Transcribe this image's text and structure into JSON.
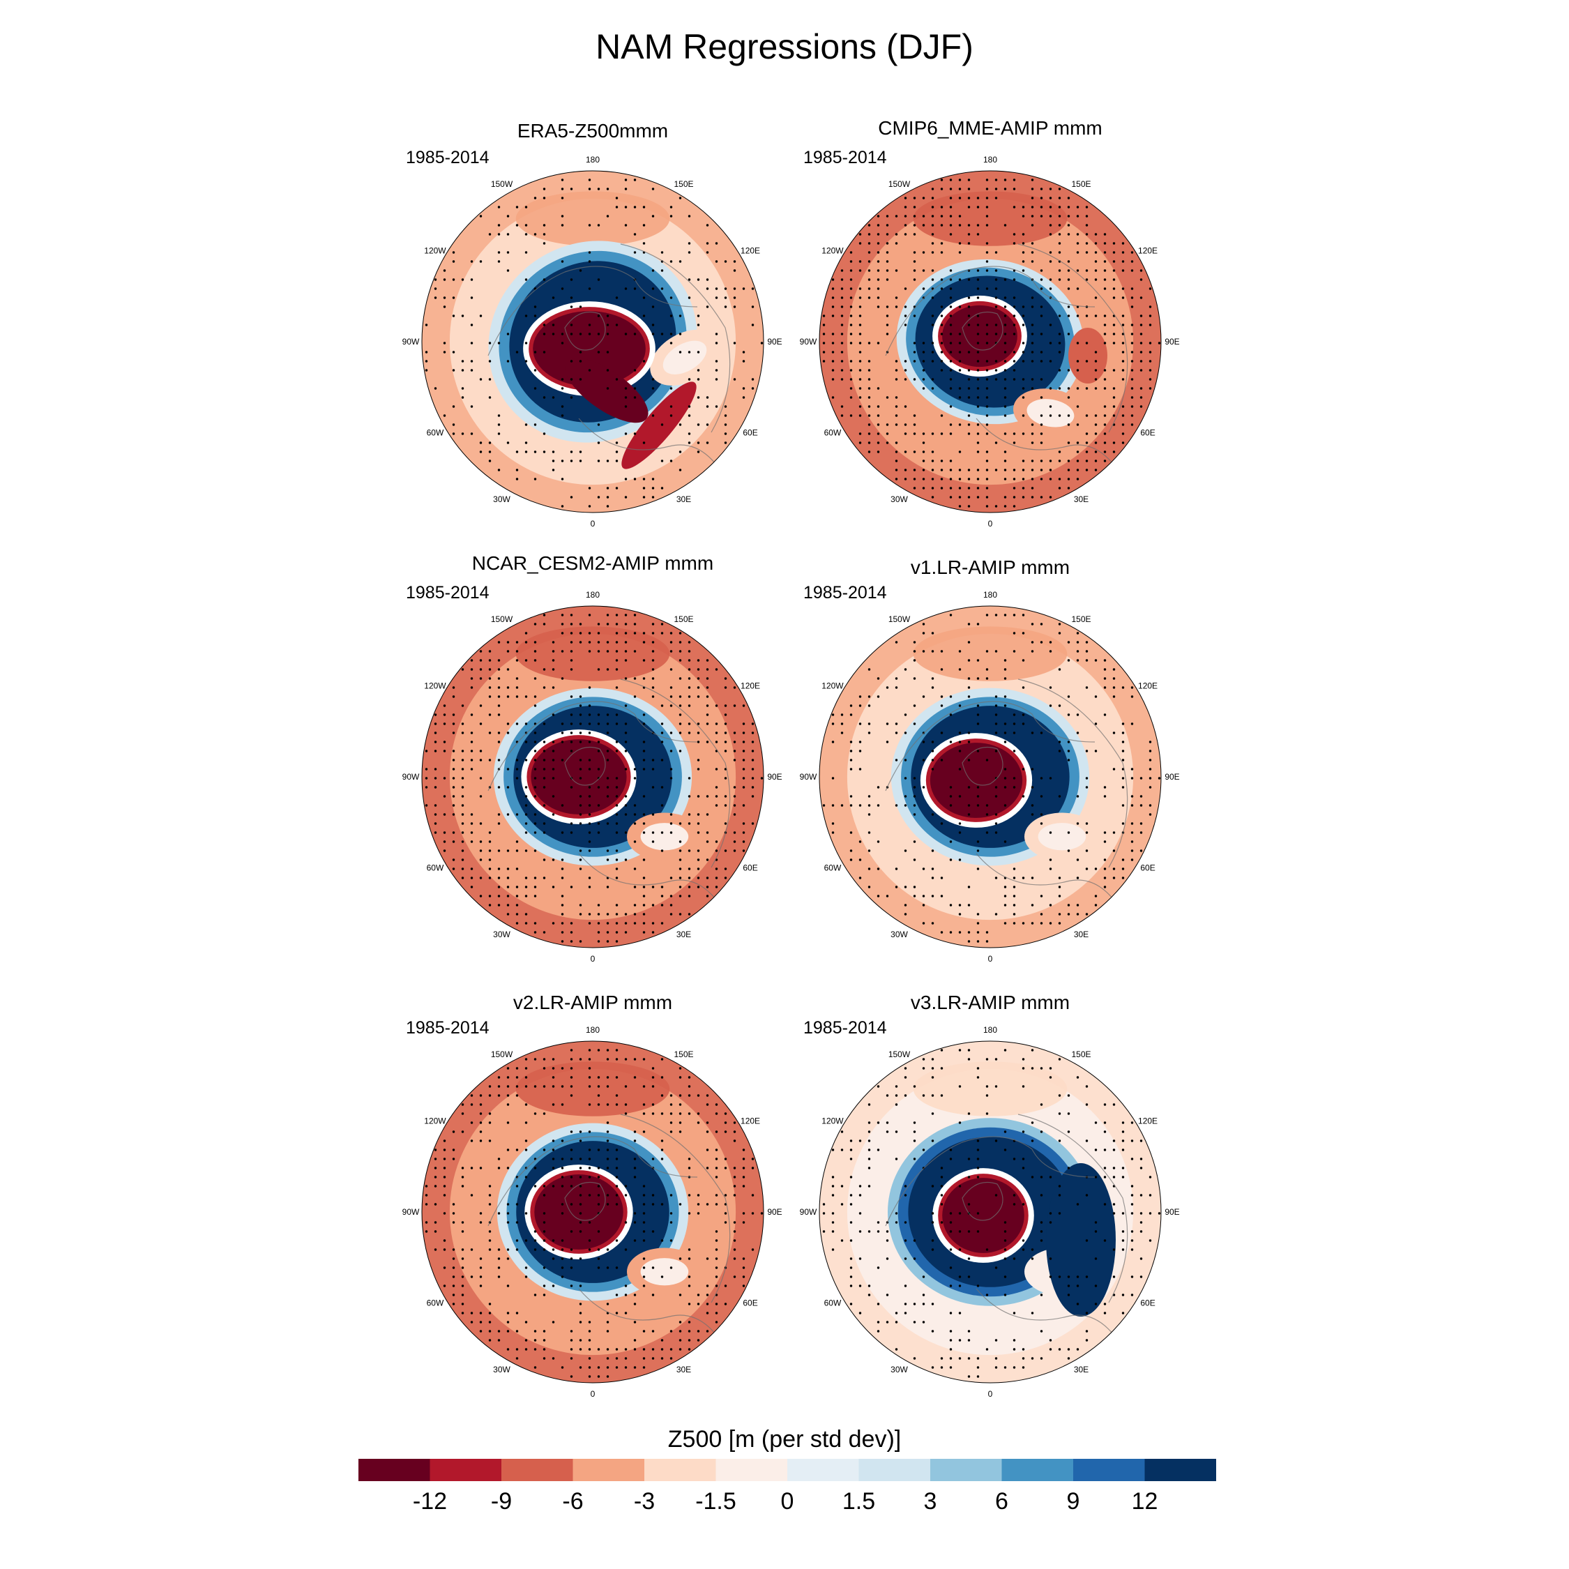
{
  "figure": {
    "title": "NAM Regressions (DJF)"
  },
  "colorbar": {
    "title": "Z500 [m (per std dev)]",
    "tick_labels": [
      "-12",
      "-9",
      "-6",
      "-3",
      "-1.5",
      "0",
      "1.5",
      "3",
      "6",
      "9",
      "12"
    ],
    "colors": [
      "#67001f",
      "#b2182b",
      "#d6604d",
      "#f4a582",
      "#fddbc7",
      "#fbeee8",
      "#e4eef5",
      "#d1e5f0",
      "#92c5de",
      "#4393c3",
      "#2166ac",
      "#053061"
    ]
  },
  "map_labels": {
    "lon_180": "180",
    "lon_150w": "150W",
    "lon_150e": "150E",
    "lon_120w": "120W",
    "lon_120e": "120E",
    "lon_90w": "90W",
    "lon_90e": "90E",
    "lon_60w": "60W",
    "lon_60e": "60E",
    "lon_30w": "30W",
    "lon_30e": "30E",
    "lon_0": "0"
  },
  "chart_data": {
    "type": "heatmap",
    "projection": "north polar stereographic",
    "variable": "Z500 regression on NAM index",
    "season": "DJF",
    "units": "m (per std dev)",
    "contour_levels": [
      -12,
      -9,
      -6,
      -3,
      -1.5,
      0,
      1.5,
      3,
      6,
      9,
      12
    ],
    "hatching": "stippling marks significant regions",
    "panels": [
      {
        "title": "ERA5-Z500mmm",
        "period": "1985-2014",
        "variant": "era5"
      },
      {
        "title": "CMIP6_MME-AMIP  mmm",
        "period": "1985-2014",
        "variant": "cmip6"
      },
      {
        "title": "NCAR_CESM2-AMIP  mmm",
        "period": "1985-2014",
        "variant": "cesm2"
      },
      {
        "title": "v1.LR-AMIP  mmm",
        "period": "1985-2014",
        "variant": "v1"
      },
      {
        "title": "v2.LR-AMIP  mmm",
        "period": "1985-2014",
        "variant": "v2"
      },
      {
        "title": "v3.LR-AMIP  mmm",
        "period": "1985-2014",
        "variant": "v3"
      }
    ]
  }
}
